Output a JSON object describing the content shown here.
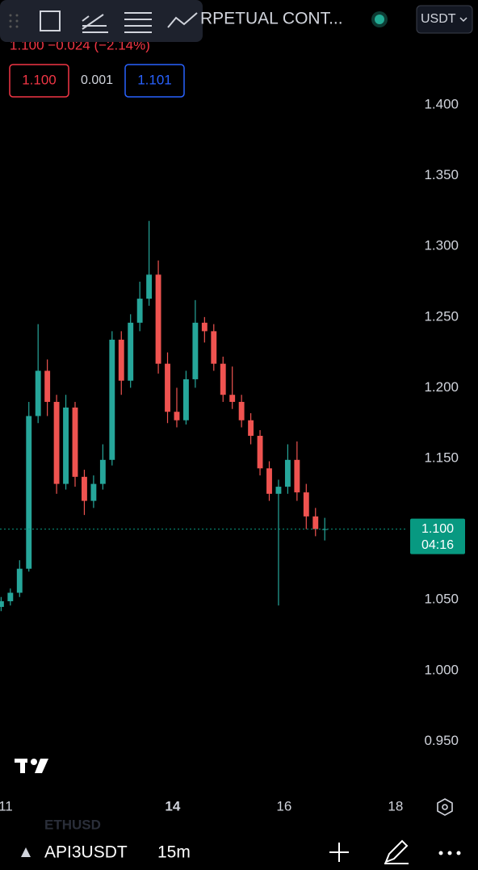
{
  "ui": {
    "change_line": "1.100 −0.024 (−2.14%)",
    "title": "RPETUAL CONT...",
    "currency": "USDT",
    "sell_price": "1.100",
    "spread": "0.001",
    "buy_price": "1.101",
    "symbol": "API3USDT",
    "interval": "15m",
    "ghost_symbol": "ETHUSD"
  },
  "chart_data": {
    "type": "candlestick",
    "x": [
      10.92,
      11.086,
      11.252,
      11.418,
      11.584,
      11.75,
      11.916,
      12.082,
      12.248,
      12.414,
      12.58,
      12.746,
      12.912,
      13.078,
      13.244,
      13.41,
      13.576,
      13.742,
      13.908,
      14.074,
      14.24,
      14.406,
      14.572,
      14.738,
      14.904,
      15.07,
      15.236,
      15.402,
      15.568,
      15.734,
      15.9,
      16.066,
      16.232,
      16.398,
      16.564,
      16.73
    ],
    "open": [
      1.045,
      1.049,
      1.055,
      1.072,
      1.18,
      1.212,
      1.19,
      1.132,
      1.186,
      1.137,
      1.12,
      1.132,
      1.149,
      1.234,
      1.205,
      1.246,
      1.263,
      1.28,
      1.217,
      1.183,
      1.177,
      1.206,
      1.246,
      1.24,
      1.217,
      1.195,
      1.19,
      1.177,
      1.166,
      1.143,
      1.125,
      1.13,
      1.149,
      1.126,
      1.109,
      1.1
    ],
    "high": [
      1.052,
      1.058,
      1.078,
      1.19,
      1.245,
      1.22,
      1.195,
      1.195,
      1.19,
      1.142,
      1.138,
      1.16,
      1.24,
      1.24,
      1.252,
      1.275,
      1.318,
      1.29,
      1.225,
      1.2,
      1.212,
      1.262,
      1.25,
      1.245,
      1.222,
      1.215,
      1.195,
      1.182,
      1.17,
      1.148,
      1.135,
      1.16,
      1.162,
      1.132,
      1.115,
      1.108
    ],
    "low": [
      1.042,
      1.046,
      1.052,
      1.07,
      1.175,
      1.18,
      1.125,
      1.128,
      1.13,
      1.11,
      1.115,
      1.128,
      1.145,
      1.195,
      1.2,
      1.24,
      1.258,
      1.21,
      1.175,
      1.172,
      1.174,
      1.2,
      1.232,
      1.212,
      1.19,
      1.185,
      1.172,
      1.16,
      1.138,
      1.12,
      1.046,
      1.125,
      1.12,
      1.1,
      1.095,
      1.092
    ],
    "close": [
      1.049,
      1.055,
      1.072,
      1.18,
      1.212,
      1.19,
      1.132,
      1.186,
      1.137,
      1.12,
      1.132,
      1.149,
      1.234,
      1.205,
      1.246,
      1.263,
      1.28,
      1.217,
      1.183,
      1.177,
      1.206,
      1.246,
      1.24,
      1.217,
      1.195,
      1.19,
      1.177,
      1.166,
      1.143,
      1.125,
      1.13,
      1.149,
      1.126,
      1.109,
      1.1,
      1.1
    ],
    "up_color": "#26a69a",
    "down_color": "#ef5350",
    "xlim": [
      10.9,
      18.22
    ],
    "xticks": [
      11,
      14,
      16,
      18
    ],
    "ylim": [
      0.912,
      1.44
    ],
    "yticks": [
      {
        "value": 0.95,
        "label": "0.950"
      },
      {
        "value": 1.0,
        "label": "1.000"
      },
      {
        "value": 1.05,
        "label": "1.050"
      },
      {
        "value": 1.1,
        "label": "1.100"
      },
      {
        "value": 1.15,
        "label": "1.150"
      },
      {
        "value": 1.2,
        "label": "1.200"
      },
      {
        "value": 1.25,
        "label": "1.250"
      },
      {
        "value": 1.3,
        "label": "1.300"
      },
      {
        "value": 1.35,
        "label": "1.350"
      },
      {
        "value": 1.4,
        "label": "1.400"
      }
    ],
    "grid": false,
    "last_price": {
      "value": 1.1,
      "label": "1.100"
    },
    "countdown": "04:16",
    "last_color": "#089981"
  }
}
